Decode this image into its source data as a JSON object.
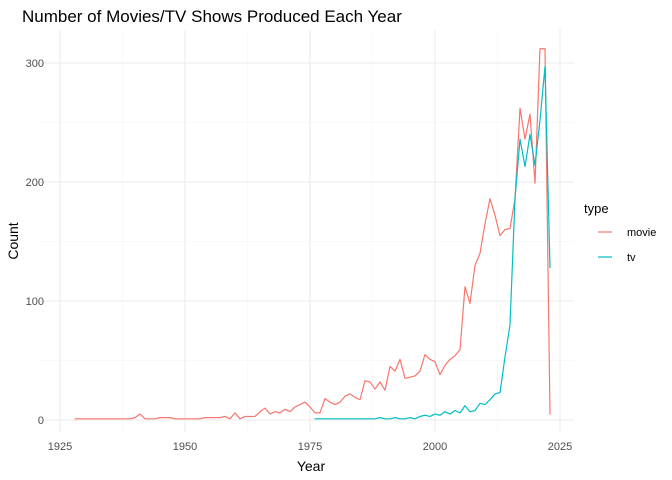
{
  "chart_data": {
    "type": "line",
    "title": "Number of Movies/TV Shows Produced Each Year",
    "xlabel": "Year",
    "ylabel": "Count",
    "xlim": [
      1925,
      2025
    ],
    "ylim": [
      0,
      300
    ],
    "x_ticks": [
      "1925",
      "1950",
      "1975",
      "2000",
      "2025"
    ],
    "y_ticks": [
      "0",
      "100",
      "200",
      "300"
    ],
    "grid": true,
    "legend": {
      "title": "type",
      "position": "right"
    },
    "series": [
      {
        "name": "movie",
        "color": "#F8766D",
        "points": [
          [
            1928,
            1
          ],
          [
            1929,
            1
          ],
          [
            1930,
            1
          ],
          [
            1931,
            1
          ],
          [
            1932,
            1
          ],
          [
            1933,
            1
          ],
          [
            1934,
            1
          ],
          [
            1935,
            1
          ],
          [
            1936,
            1
          ],
          [
            1937,
            1
          ],
          [
            1938,
            1
          ],
          [
            1939,
            1
          ],
          [
            1940,
            2
          ],
          [
            1941,
            5
          ],
          [
            1942,
            1
          ],
          [
            1943,
            1
          ],
          [
            1944,
            1
          ],
          [
            1945,
            2
          ],
          [
            1946,
            2
          ],
          [
            1947,
            2
          ],
          [
            1948,
            1
          ],
          [
            1949,
            1
          ],
          [
            1950,
            1
          ],
          [
            1951,
            1
          ],
          [
            1952,
            1
          ],
          [
            1953,
            1
          ],
          [
            1954,
            2
          ],
          [
            1955,
            2
          ],
          [
            1956,
            2
          ],
          [
            1957,
            2
          ],
          [
            1958,
            3
          ],
          [
            1959,
            1
          ],
          [
            1960,
            6
          ],
          [
            1961,
            1
          ],
          [
            1962,
            3
          ],
          [
            1963,
            3
          ],
          [
            1964,
            3
          ],
          [
            1965,
            7
          ],
          [
            1966,
            10
          ],
          [
            1967,
            5
          ],
          [
            1968,
            7
          ],
          [
            1969,
            6
          ],
          [
            1970,
            9
          ],
          [
            1971,
            7
          ],
          [
            1972,
            11
          ],
          [
            1973,
            13
          ],
          [
            1974,
            15
          ],
          [
            1975,
            11
          ],
          [
            1976,
            6
          ],
          [
            1977,
            6
          ],
          [
            1978,
            18
          ],
          [
            1979,
            15
          ],
          [
            1980,
            13
          ],
          [
            1981,
            15
          ],
          [
            1982,
            20
          ],
          [
            1983,
            22
          ],
          [
            1984,
            19
          ],
          [
            1985,
            17
          ],
          [
            1986,
            33
          ],
          [
            1987,
            32
          ],
          [
            1988,
            26
          ],
          [
            1989,
            32
          ],
          [
            1990,
            25
          ],
          [
            1991,
            45
          ],
          [
            1992,
            41
          ],
          [
            1993,
            51
          ],
          [
            1994,
            35
          ],
          [
            1995,
            36
          ],
          [
            1996,
            37
          ],
          [
            1997,
            41
          ],
          [
            1998,
            55
          ],
          [
            1999,
            51
          ],
          [
            2000,
            49
          ],
          [
            2001,
            38
          ],
          [
            2002,
            46
          ],
          [
            2003,
            51
          ],
          [
            2004,
            54
          ],
          [
            2005,
            59
          ],
          [
            2006,
            112
          ],
          [
            2007,
            98
          ],
          [
            2008,
            130
          ],
          [
            2009,
            140
          ],
          [
            2010,
            165
          ],
          [
            2011,
            186
          ],
          [
            2012,
            172
          ],
          [
            2013,
            155
          ],
          [
            2014,
            160
          ],
          [
            2015,
            161
          ],
          [
            2016,
            186
          ],
          [
            2017,
            262
          ],
          [
            2018,
            236
          ],
          [
            2019,
            257
          ],
          [
            2020,
            199
          ],
          [
            2021,
            312
          ],
          [
            2022,
            312
          ],
          [
            2023,
            5
          ]
        ]
      },
      {
        "name": "tv",
        "color": "#00BFC4",
        "points": [
          [
            1976,
            1
          ],
          [
            1977,
            1
          ],
          [
            1978,
            1
          ],
          [
            1979,
            1
          ],
          [
            1980,
            1
          ],
          [
            1981,
            1
          ],
          [
            1982,
            1
          ],
          [
            1983,
            1
          ],
          [
            1984,
            1
          ],
          [
            1985,
            1
          ],
          [
            1986,
            1
          ],
          [
            1987,
            1
          ],
          [
            1988,
            1
          ],
          [
            1989,
            2
          ],
          [
            1990,
            1
          ],
          [
            1991,
            1
          ],
          [
            1992,
            2
          ],
          [
            1993,
            1
          ],
          [
            1994,
            1
          ],
          [
            1995,
            2
          ],
          [
            1996,
            1
          ],
          [
            1997,
            3
          ],
          [
            1998,
            4
          ],
          [
            1999,
            3
          ],
          [
            2000,
            5
          ],
          [
            2001,
            4
          ],
          [
            2002,
            7
          ],
          [
            2003,
            5
          ],
          [
            2004,
            8
          ],
          [
            2005,
            6
          ],
          [
            2006,
            12
          ],
          [
            2007,
            7
          ],
          [
            2008,
            8
          ],
          [
            2009,
            14
          ],
          [
            2010,
            13
          ],
          [
            2011,
            17
          ],
          [
            2012,
            22
          ],
          [
            2013,
            23
          ],
          [
            2014,
            53
          ],
          [
            2015,
            80
          ],
          [
            2016,
            186
          ],
          [
            2017,
            236
          ],
          [
            2018,
            213
          ],
          [
            2019,
            240
          ],
          [
            2020,
            214
          ],
          [
            2021,
            252
          ],
          [
            2022,
            297
          ],
          [
            2023,
            128
          ]
        ]
      }
    ]
  }
}
